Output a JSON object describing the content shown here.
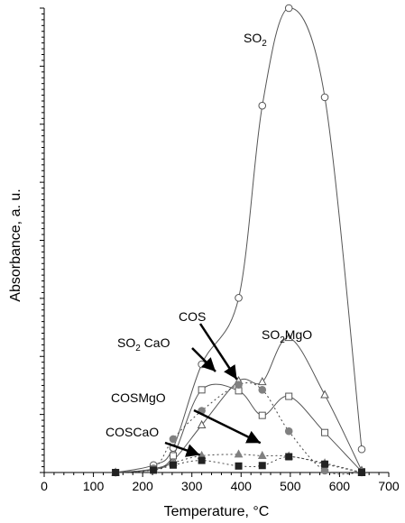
{
  "chart_data": {
    "type": "line",
    "title": "",
    "xlabel": "Temperature, °C",
    "ylabel": "Absorbance, a. u.",
    "xlim": [
      0,
      700
    ],
    "ylim": [
      0,
      100
    ],
    "x_ticks": [
      "0",
      "100",
      "200",
      "300",
      "400",
      "500",
      "600",
      "700"
    ],
    "grid": false,
    "legend": "none",
    "series": [
      {
        "name": "SO2",
        "label_main": "SO",
        "label_sub": "2",
        "marker": "open-circle",
        "line": "solid",
        "x": [
          145,
          222,
          262,
          320,
          395,
          443,
          497,
          570,
          645
        ],
        "y": [
          0,
          1.6,
          5.3,
          23.3,
          37.6,
          79,
          100,
          80.8,
          5
        ]
      },
      {
        "name": "SO2MgO",
        "label_main": "SO",
        "label_sub": "2",
        "label_tail": "MgO",
        "marker": "open-triangle",
        "line": "solid",
        "x": [
          145,
          222,
          262,
          320,
          395,
          443,
          497,
          570,
          645
        ],
        "y": [
          0,
          0.6,
          2.6,
          10.2,
          19.7,
          19.5,
          29,
          16.7,
          0.4
        ]
      },
      {
        "name": "SO2CaO",
        "label_main": "SO",
        "label_sub": "2",
        "label_tail": " CaO",
        "marker": "open-square",
        "line": "solid",
        "x": [
          145,
          222,
          262,
          320,
          395,
          443,
          497,
          570,
          645
        ],
        "y": [
          0,
          0.8,
          3.6,
          17.8,
          17.6,
          12.3,
          16.4,
          8.6,
          0.2
        ]
      },
      {
        "name": "COS",
        "marker": "filled-circle",
        "line": "dotted",
        "x": [
          145,
          222,
          262,
          320,
          395,
          443,
          497,
          570,
          645
        ],
        "y": [
          0,
          0.9,
          7.2,
          13.3,
          18.9,
          17.8,
          8.9,
          0.4,
          0
        ]
      },
      {
        "name": "COSMgO",
        "marker": "filled-triangle",
        "line": "dotted",
        "x": [
          145,
          222,
          262,
          320,
          395,
          443,
          497,
          570,
          645
        ],
        "y": [
          0,
          0.6,
          2.1,
          3.6,
          3.9,
          3.6,
          3.5,
          2.0,
          0
        ]
      },
      {
        "name": "COSCaO",
        "marker": "filled-square",
        "line": "dotted",
        "x": [
          145,
          222,
          262,
          320,
          395,
          443,
          497,
          570,
          645
        ],
        "y": [
          0,
          0.5,
          1.6,
          2.6,
          1.4,
          1.5,
          3.4,
          1.8,
          0
        ]
      }
    ],
    "annotations": [
      {
        "text": "COS",
        "arrow_to": [
          395,
          18.9
        ]
      },
      {
        "text": "COSMgO",
        "arrow_to": [
          443,
          5.2
        ]
      },
      {
        "text": "COSCaO",
        "arrow_to": [
          320,
          2.6
        ]
      }
    ]
  }
}
